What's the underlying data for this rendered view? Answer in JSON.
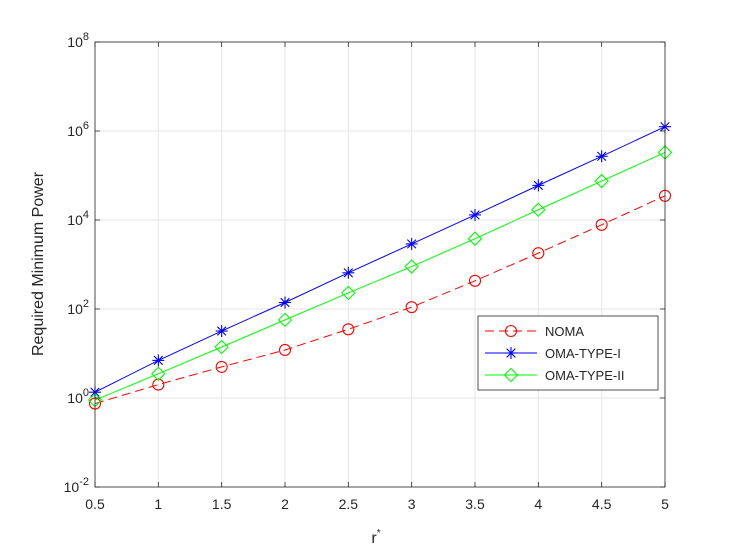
{
  "chart_data": {
    "type": "line",
    "title": "",
    "xlabel": "r",
    "xlabel_superscript": "*",
    "ylabel": "Required Minimum Power",
    "yscale": "log",
    "xlim": [
      0.5,
      5
    ],
    "ylim_exp": [
      -2,
      8
    ],
    "x": [
      0.5,
      1,
      1.5,
      2,
      2.5,
      3,
      3.5,
      4,
      4.5,
      5
    ],
    "x_tick_labels": [
      "0.5",
      "1",
      "1.5",
      "2",
      "2.5",
      "3",
      "3.5",
      "4",
      "4.5",
      "5"
    ],
    "y_tick_exponents": [
      "-2",
      "0",
      "2",
      "4",
      "6",
      "8"
    ],
    "y_tick_base": "10",
    "grid": true,
    "legend_position": "right-middle",
    "series": [
      {
        "name": "NOMA",
        "color": "#ff0000",
        "dash": "dashed",
        "marker": "circle",
        "values": [
          0.75,
          2.0,
          5.0,
          12,
          35,
          110,
          430,
          1800,
          7800,
          35000
        ]
      },
      {
        "name": "OMA-TYPE-I",
        "color": "#0000ff",
        "dash": "solid",
        "marker": "asterisk",
        "values": [
          1.35,
          7,
          32,
          140,
          650,
          2900,
          13000,
          60000,
          270000,
          1250000
        ]
      },
      {
        "name": "OMA-TYPE-II",
        "color": "#00ff00",
        "dash": "solid",
        "marker": "diamond",
        "values": [
          0.9,
          3.5,
          14,
          57,
          230,
          900,
          3800,
          17000,
          75000,
          330000
        ]
      }
    ]
  }
}
